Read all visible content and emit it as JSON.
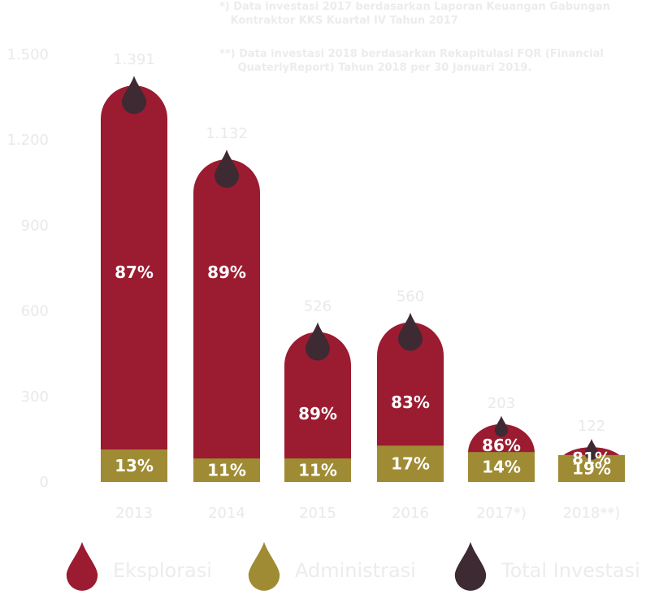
{
  "notes": {
    "note_2017": "*) Data investasi 2017 berdasarkan Laporan Keuangan Gabungan\n   Kontraktor KKS Kuartal IV Tahun 2017",
    "note_2018": "**) Data investasi 2018 berdasarkan Rekapitulasi FQR (Financial\n     QuaterlyReport) Tahun 2018 per 30 Januari 2019."
  },
  "colors": {
    "eksplorasi": "#9b1b30",
    "administrasi": "#9f8b33",
    "total": "#3d2a33",
    "faint_text": "#e9e9e9"
  },
  "chart_data": {
    "type": "bar",
    "categories": [
      "2013",
      "2014",
      "2015",
      "2016",
      "2017*)",
      "2018**)"
    ],
    "totals_labels": [
      "1.391",
      "1.132",
      "526",
      "560",
      "203",
      "122"
    ],
    "series": [
      {
        "name": "Eksplorasi",
        "values": [
          1391,
          1132,
          526,
          560,
          203,
          122
        ],
        "percent_labels": [
          "87%",
          "89%",
          "89%",
          "83%",
          "86%",
          "81%"
        ]
      },
      {
        "name": "Administrasi",
        "percent_labels": [
          "13%",
          "11%",
          "11%",
          "17%",
          "14%",
          "19%"
        ]
      }
    ],
    "yticks": [
      {
        "value": 0,
        "label": "0"
      },
      {
        "value": 300,
        "label": "300"
      },
      {
        "value": 600,
        "label": "600"
      },
      {
        "value": 900,
        "label": "900"
      },
      {
        "value": 1200,
        "label": "1.200"
      },
      {
        "value": 1500,
        "label": "1.500"
      }
    ],
    "ylim": [
      0,
      1500
    ],
    "legend": {
      "placement": "bottom",
      "items": [
        {
          "label": "Eksplorasi",
          "icon": "drop-icon",
          "color": "#9b1b30"
        },
        {
          "label": "Administrasi",
          "icon": "drop-icon",
          "color": "#9f8b33"
        },
        {
          "label": "Total Investasi",
          "icon": "drop-icon",
          "color": "#3d2a33"
        }
      ]
    }
  }
}
